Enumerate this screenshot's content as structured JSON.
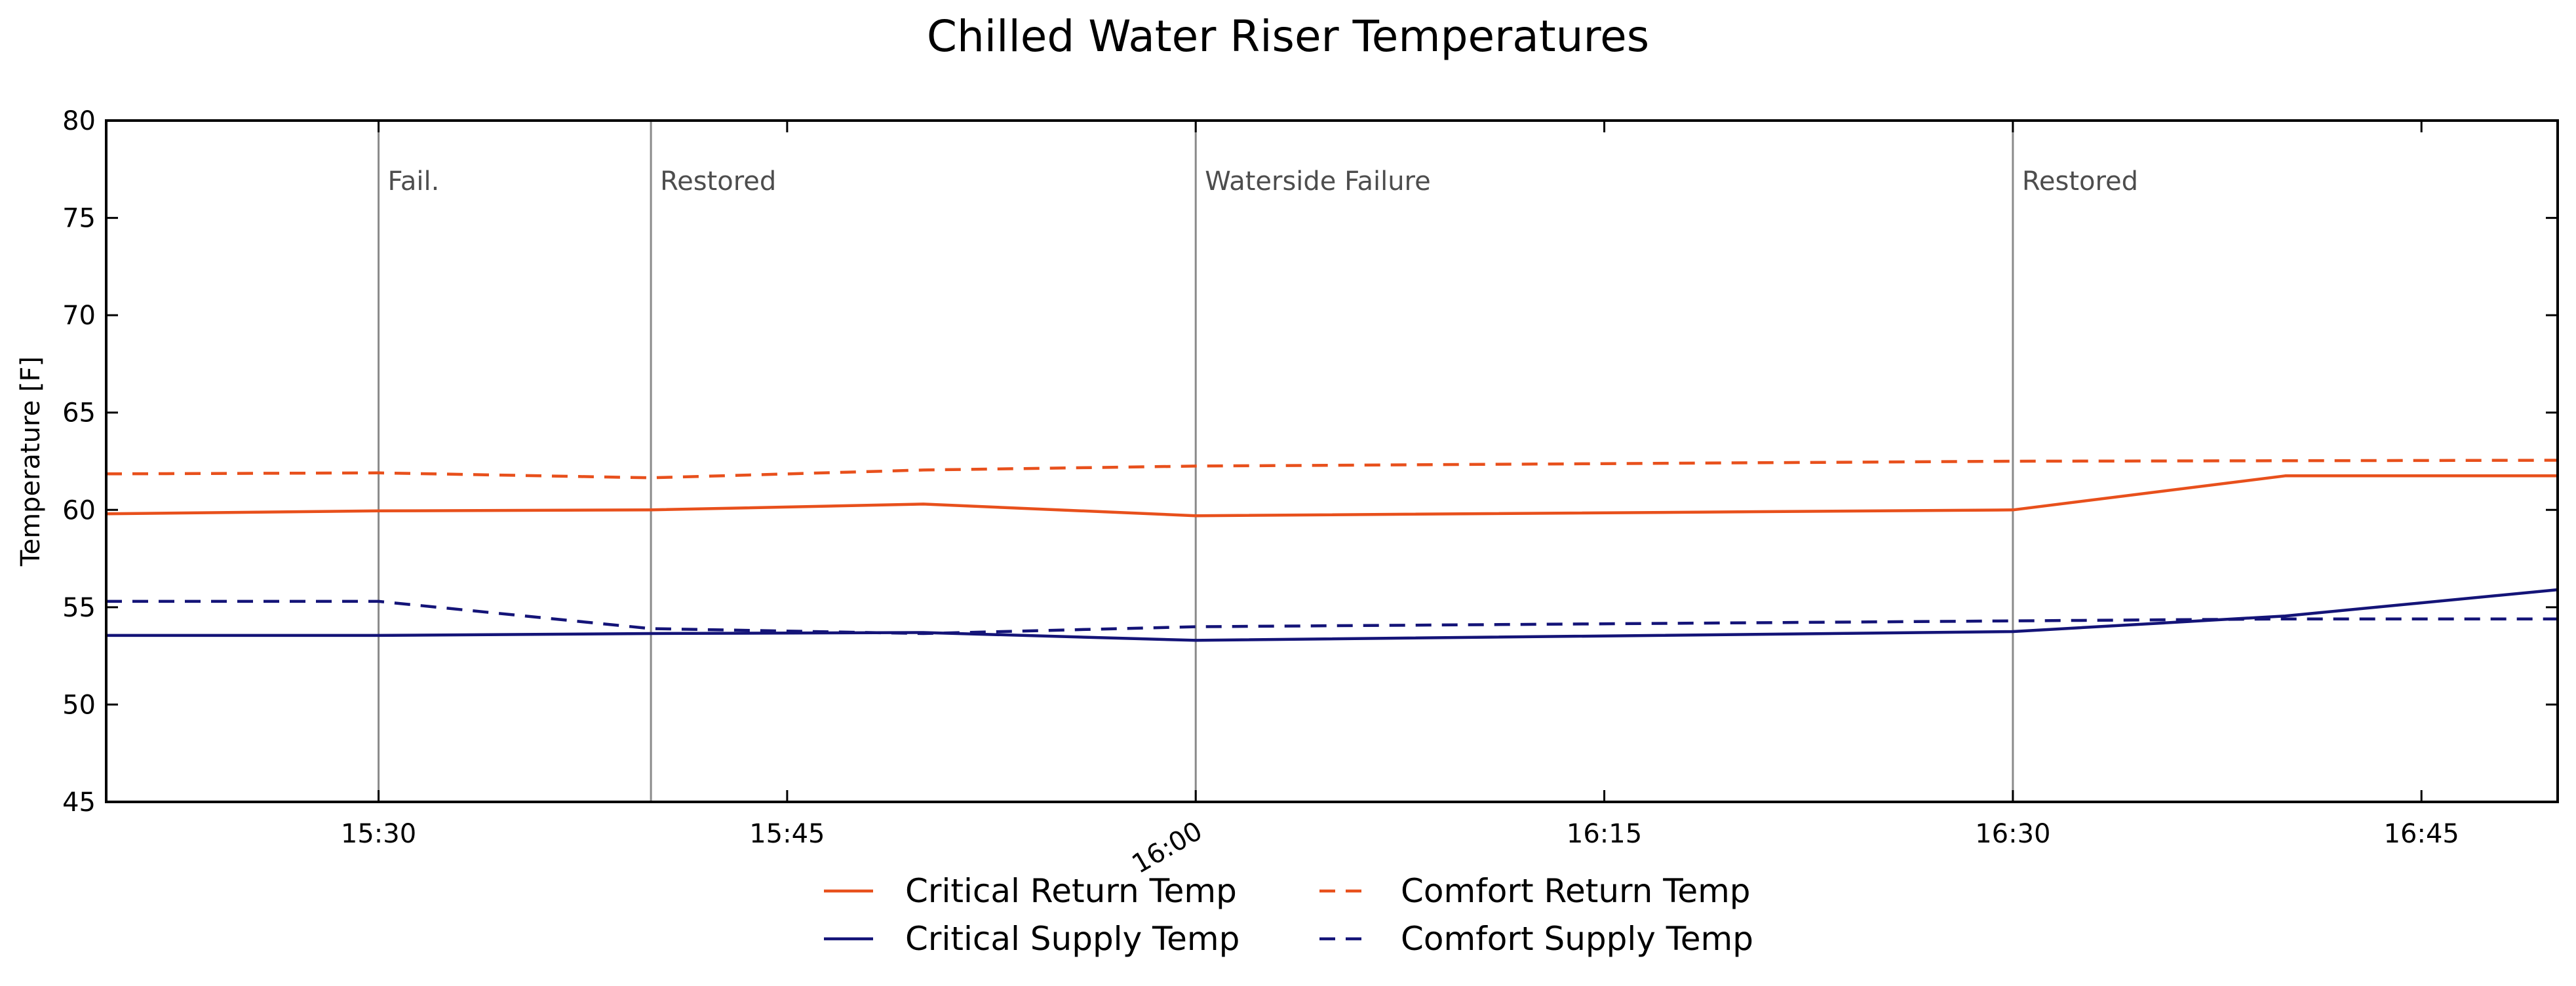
{
  "chart_data": {
    "type": "line",
    "title": "Chilled Water Riser Temperatures",
    "xlabel": "",
    "ylabel": "Temperature [F]",
    "ylim": [
      45,
      80
    ],
    "xlim": [
      "15:20",
      "16:50"
    ],
    "yticks": [
      45,
      50,
      55,
      60,
      65,
      70,
      75,
      80
    ],
    "xticks": [
      "15:30",
      "15:45",
      "16:00",
      "16:15",
      "16:30",
      "16:45"
    ],
    "grid": false,
    "legend_position": "bottom-center",
    "annotations": [
      {
        "x": "15:30",
        "label": "Fail."
      },
      {
        "x": "15:40",
        "label": "Restored"
      },
      {
        "x": "16:00",
        "label": "Waterside Failure"
      },
      {
        "x": "16:30",
        "label": "Restored"
      }
    ],
    "series": [
      {
        "name": "Critical Return Temp",
        "color": "#e8501c",
        "style": "solid",
        "x": [
          "15:20",
          "15:30",
          "15:40",
          "15:50",
          "16:00",
          "16:30",
          "16:40",
          "16:50"
        ],
        "values": [
          59.8,
          59.95,
          60.0,
          60.3,
          59.7,
          60.0,
          61.75,
          61.75
        ]
      },
      {
        "name": "Critical Supply Temp",
        "color": "#141478",
        "style": "solid",
        "x": [
          "15:20",
          "15:30",
          "15:40",
          "15:50",
          "16:00",
          "16:30",
          "16:40",
          "16:50"
        ],
        "values": [
          53.55,
          53.55,
          53.65,
          53.7,
          53.3,
          53.75,
          54.55,
          55.9
        ]
      },
      {
        "name": "Comfort Return Temp",
        "color": "#e8501c",
        "style": "dashed",
        "x": [
          "15:20",
          "15:30",
          "15:40",
          "15:50",
          "16:00",
          "16:30",
          "16:50"
        ],
        "values": [
          61.85,
          61.9,
          61.65,
          62.05,
          62.25,
          62.5,
          62.55
        ]
      },
      {
        "name": "Comfort Supply Temp",
        "color": "#141478",
        "style": "dashed",
        "x": [
          "15:20",
          "15:30",
          "15:40",
          "15:50",
          "16:00",
          "16:30",
          "16:40",
          "16:50"
        ],
        "values": [
          55.3,
          55.3,
          53.9,
          53.65,
          54.0,
          54.3,
          54.4,
          54.4
        ]
      }
    ]
  }
}
